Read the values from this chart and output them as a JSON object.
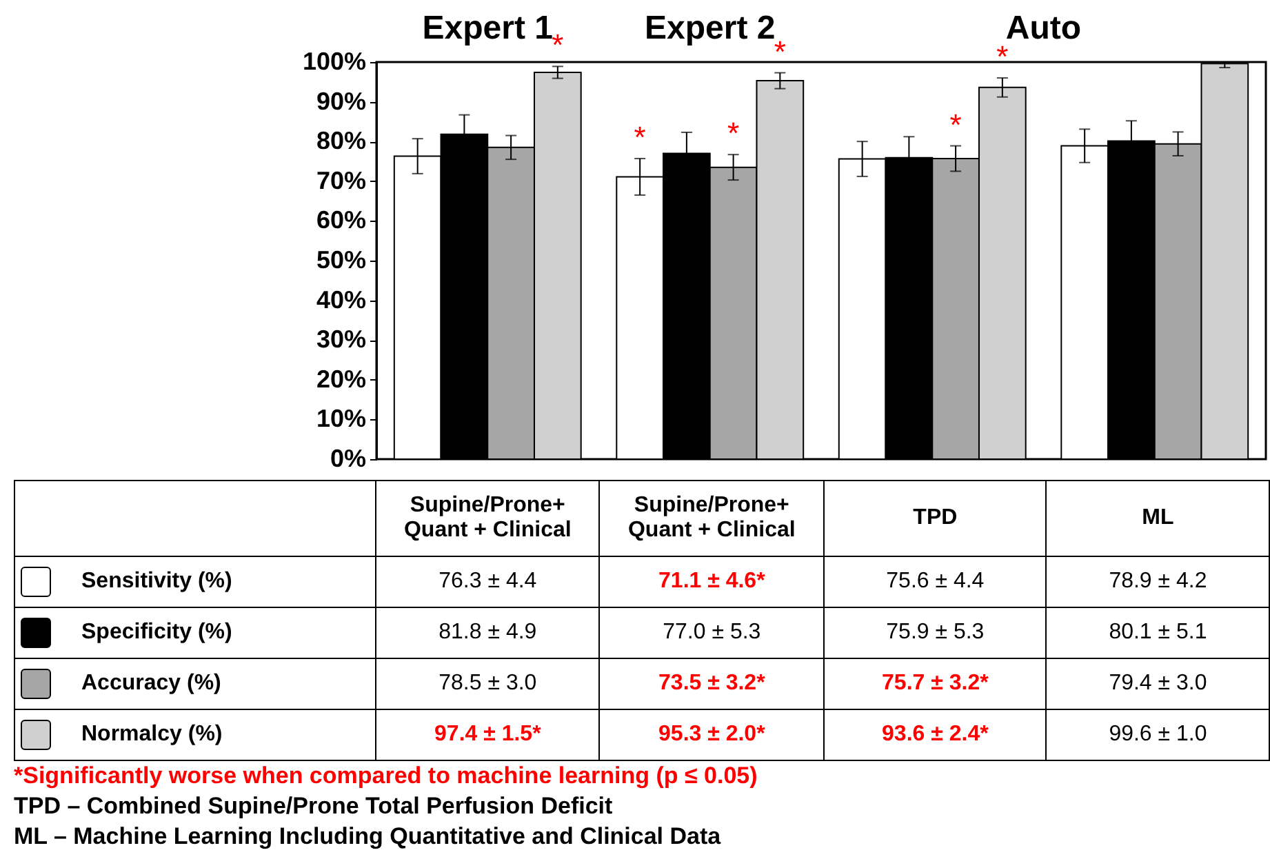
{
  "chart_data": {
    "type": "bar",
    "categories": [
      "Supine/Prone+ Quant + Clinical",
      "Supine/Prone+ Quant + Clinical",
      "TPD",
      "ML"
    ],
    "series": [
      {
        "name": "Sensitivity (%)",
        "color": "#ffffff",
        "values": [
          76.3,
          71.1,
          75.6,
          78.9
        ],
        "errors": [
          4.4,
          4.6,
          4.4,
          4.2
        ],
        "value_labels": [
          "76.3 ± 4.4",
          "71.1 ± 4.6*",
          "75.6 ± 4.4",
          "78.9 ± 4.2"
        ]
      },
      {
        "name": "Specificity (%)",
        "color": "#000000",
        "values": [
          81.8,
          77.0,
          75.9,
          80.1
        ],
        "errors": [
          4.9,
          5.3,
          5.3,
          5.1
        ],
        "value_labels": [
          "81.8 ± 4.9",
          "77.0 ± 5.3",
          "75.9 ± 5.3",
          "80.1 ± 5.1"
        ]
      },
      {
        "name": "Accuracy (%)",
        "color": "#a6a6a6",
        "values": [
          78.5,
          73.5,
          75.7,
          79.4
        ],
        "errors": [
          3.0,
          3.2,
          3.2,
          3.0
        ],
        "value_labels": [
          "78.5 ± 3.0",
          "73.5 ± 3.2*",
          "75.7 ± 3.2*",
          "79.4 ± 3.0"
        ]
      },
      {
        "name": "Normalcy (%)",
        "color": "#d0d0d0",
        "values": [
          97.4,
          95.3,
          93.6,
          99.6
        ],
        "errors": [
          1.5,
          2.0,
          2.4,
          [
            98.6,
            100
          ]
        ],
        "value_labels": [
          "97.4 ± 1.5*",
          "95.3 ± 2.0*",
          "93.6 ± 2.4*",
          "99.6 ± 1.0"
        ]
      }
    ],
    "ylim": [
      0,
      100
    ],
    "yticks": [
      {
        "value": 0,
        "label": "0%"
      },
      {
        "value": 10,
        "label": "10%"
      },
      {
        "value": 20,
        "label": "20%"
      },
      {
        "value": 30,
        "label": "30%"
      },
      {
        "value": 40,
        "label": "40%"
      },
      {
        "value": 50,
        "label": "50%"
      },
      {
        "value": 60,
        "label": "60%"
      },
      {
        "value": 70,
        "label": "70%"
      },
      {
        "value": 80,
        "label": "80%"
      },
      {
        "value": 90,
        "label": "90%"
      },
      {
        "value": 100,
        "label": "100%"
      }
    ],
    "grid": false,
    "legend": "bottom",
    "annotations": [
      "Expert 1",
      "Expert 2",
      "Auto",
      "*Significantly worse when compared to machine learning (p ≤ 0.05)",
      "TPD – Combined Supine/Prone Total Perfusion Deficit",
      "ML – Machine Learning Including Quantitative and Clinical Data",
      "*",
      "*",
      "*",
      "*",
      "*",
      "*"
    ]
  }
}
